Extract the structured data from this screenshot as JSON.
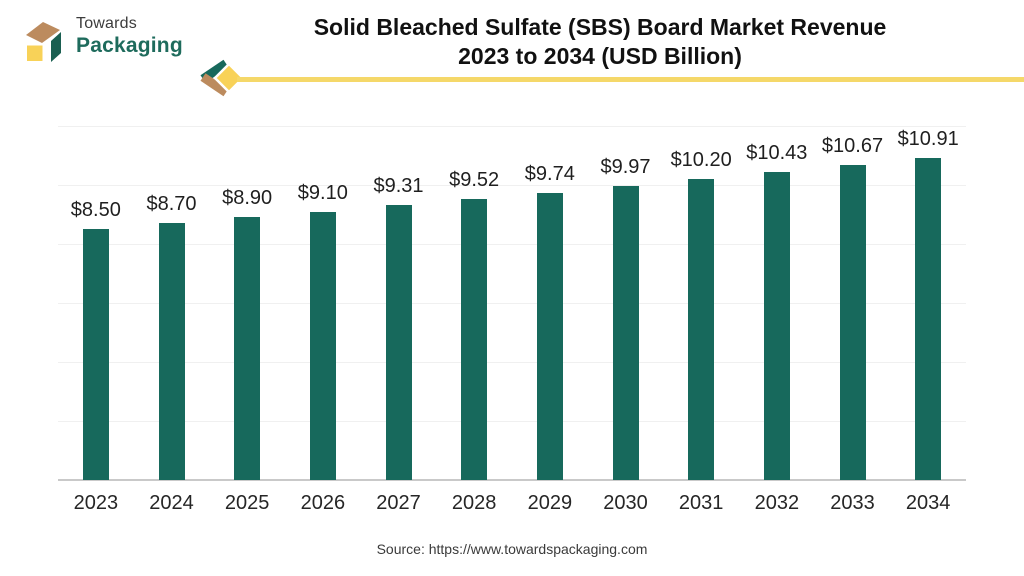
{
  "logo": {
    "line1": "Towards",
    "line2": "Packaging"
  },
  "title": {
    "line1": "Solid Bleached Sulfate (SBS) Board Market Revenue",
    "line2": "2023 to 2034 (USD Billion)"
  },
  "brand_colors": {
    "teal": "#17695c",
    "tan": "#bc8b5e",
    "yellow": "#f5d869",
    "diamond_yellow": "#f8d258",
    "logo_text_teal": "#1e6b5c",
    "logo_text_gray": "#3c3c3c"
  },
  "chart_data": {
    "type": "bar",
    "title": "Solid Bleached Sulfate (SBS) Board Market Revenue 2023 to 2034 (USD Billion)",
    "categories": [
      "2023",
      "2024",
      "2025",
      "2026",
      "2027",
      "2028",
      "2029",
      "2030",
      "2031",
      "2032",
      "2033",
      "2034"
    ],
    "values": [
      8.5,
      8.7,
      8.9,
      9.1,
      9.31,
      9.52,
      9.74,
      9.97,
      10.2,
      10.43,
      10.67,
      10.91
    ],
    "labels": [
      "$8.50",
      "$8.70",
      "$8.90",
      "$9.10",
      "$9.31",
      "$9.52",
      "$9.74",
      "$9.97",
      "$10.20",
      "$10.43",
      "$10.67",
      "$10.91"
    ],
    "unit": "USD Billion",
    "xlabel": "",
    "ylabel": "",
    "ylim": [
      0,
      12
    ],
    "grid_step": 2,
    "grid_on": true,
    "legend": "none",
    "bar_color": "#17695c",
    "gridline_color": "#f0f0f0",
    "axis_line_color": "#c9c9c9",
    "label_color": "#1f1f1f"
  },
  "source": {
    "text": "Source: https://www.towardspackaging.com"
  }
}
